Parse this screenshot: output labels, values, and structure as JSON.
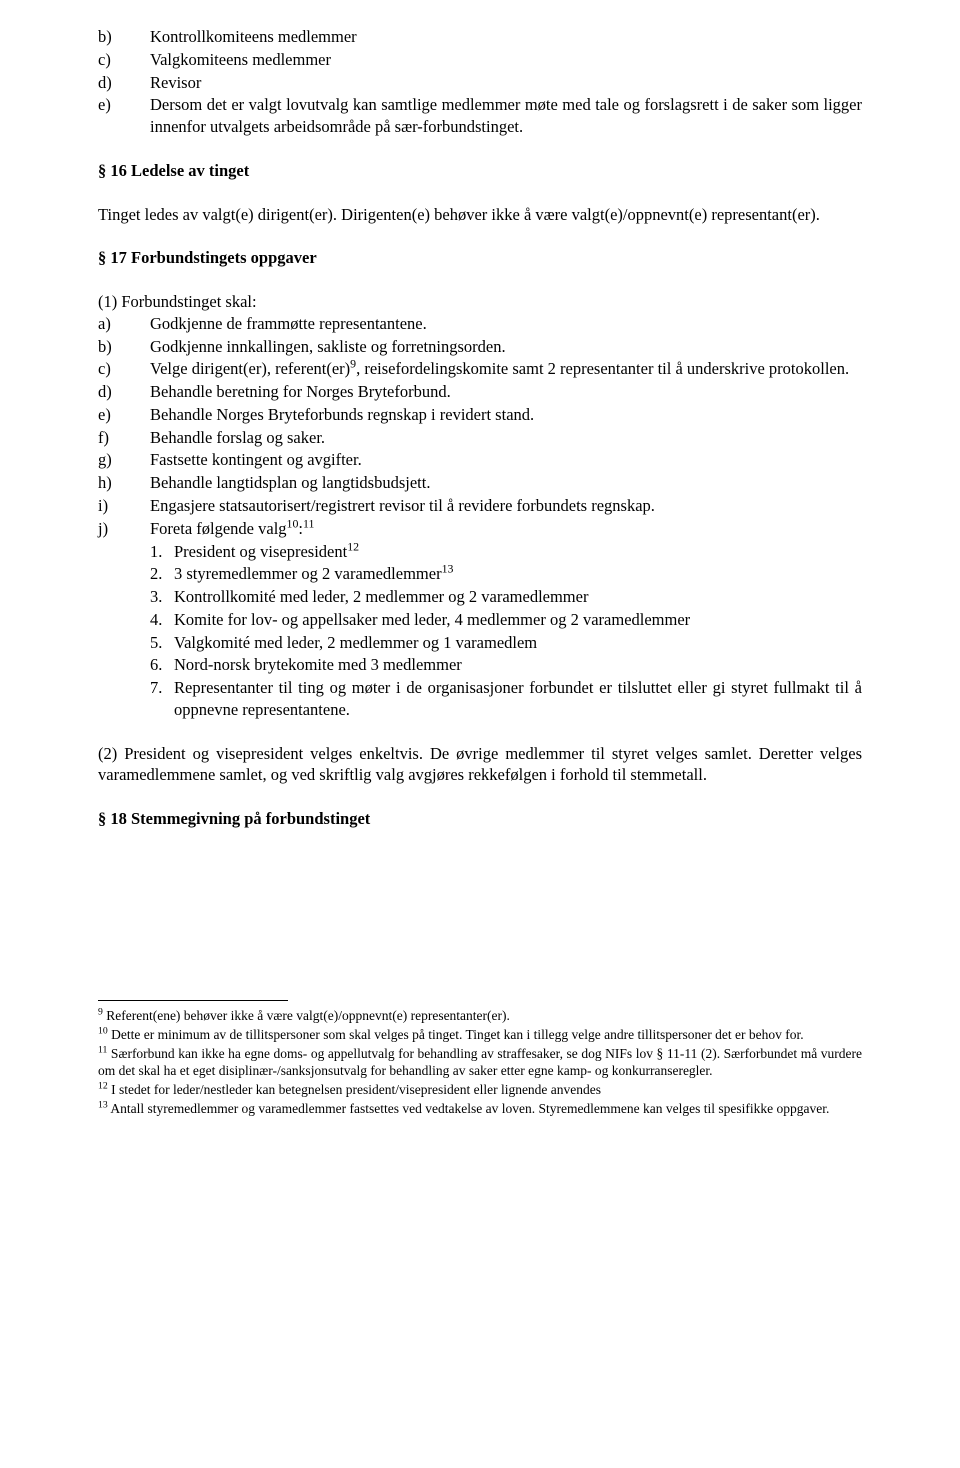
{
  "colors": {
    "background": "#ffffff",
    "text": "#000000",
    "rule": "#000000"
  },
  "typography": {
    "body_font": "Times New Roman",
    "body_size_pt": 12,
    "footnote_size_pt": 10,
    "heading_weight": "bold"
  },
  "top_list": [
    {
      "letter": "b)",
      "text": "Kontrollkomiteens medlemmer"
    },
    {
      "letter": "c)",
      "text": "Valgkomiteens medlemmer"
    },
    {
      "letter": "d)",
      "text": "Revisor"
    },
    {
      "letter": "e)",
      "text": "Dersom det er valgt lovutvalg kan samtlige medlemmer møte med tale og forslagsrett i de saker som ligger innenfor utvalgets arbeidsområde på sær-forbundstinget."
    }
  ],
  "section16": {
    "heading": "§ 16 Ledelse av tinget",
    "para": "Tinget ledes av valgt(e) dirigent(er). Dirigenten(e) behøver ikke å være valgt(e)/oppnevnt(e) representant(er)."
  },
  "section17": {
    "heading": "§ 17 Forbundstingets oppgaver",
    "intro": "(1) Forbundstinget skal:",
    "items": [
      {
        "letter": "a)",
        "text": "Godkjenne de frammøtte representantene."
      },
      {
        "letter": "b)",
        "text": "Godkjenne innkallingen, sakliste og forretningsorden."
      },
      {
        "letter": "c)",
        "pre": "Velge dirigent(er), referent(er)",
        "sup": "9",
        "post": ", reisefordelingskomite samt 2 representanter til å underskrive protokollen."
      },
      {
        "letter": "d)",
        "text": "Behandle beretning for Norges Bryteforbund."
      },
      {
        "letter": "e)",
        "text": "Behandle Norges Bryteforbunds regnskap i revidert stand."
      },
      {
        "letter": "f)",
        "text": "Behandle forslag og saker."
      },
      {
        "letter": "g)",
        "text": "Fastsette kontingent og avgifter."
      },
      {
        "letter": "h)",
        "text": "Behandle langtidsplan og langtidsbudsjett."
      },
      {
        "letter": "i)",
        "text": "Engasjere statsautorisert/registrert revisor til å revidere forbundets regnskap."
      },
      {
        "letter": "j)",
        "pre": "Foreta følgende valg",
        "sup": "10",
        "post_colon_sup": "11",
        "post": ":"
      }
    ],
    "j_sub": [
      {
        "num": "1.",
        "pre": "President og visepresident",
        "sup": "12",
        "post": ""
      },
      {
        "num": "2.",
        "pre": "3 styremedlemmer og 2 varamedlemmer",
        "sup": "13",
        "post": ""
      },
      {
        "num": "3.",
        "text": "Kontrollkomité med leder, 2 medlemmer og 2 varamedlemmer"
      },
      {
        "num": "4.",
        "text": "Komite for lov- og appellsaker med leder, 4 medlemmer og 2 varamedlemmer"
      },
      {
        "num": "5.",
        "text": "Valgkomité med leder, 2 medlemmer og 1 varamedlem"
      },
      {
        "num": "6.",
        "text": "Nord-norsk brytekomite med 3 medlemmer"
      },
      {
        "num": "7.",
        "text": "Representanter til ting og møter i de organisasjoner forbundet er tilsluttet eller gi styret fullmakt til å oppnevne representantene."
      }
    ],
    "para2": "(2) President og visepresident velges enkeltvis. De øvrige medlemmer til styret velges samlet. Deretter velges varamedlemmene samlet, og ved skriftlig valg avgjøres rekkefølgen i forhold til stemmetall."
  },
  "section18": {
    "heading": "§ 18 Stemmegivning på forbundstinget"
  },
  "footnotes": [
    {
      "sup": "9",
      "text": " Referent(ene) behøver ikke å være valgt(e)/oppnevnt(e) representanter(er)."
    },
    {
      "sup": "10",
      "text": " Dette er minimum av de tillitspersoner som skal velges på tinget. Tinget kan i tillegg velge andre tillitspersoner det er behov for."
    },
    {
      "sup": "11",
      "text": " Særforbund kan ikke ha egne doms- og appellutvalg for behandling av straffesaker, se dog NIFs lov § 11-11 (2). Særforbundet må vurdere om det skal ha et eget disiplinær-/sanksjonsutvalg for behandling av saker etter egne kamp- og konkurranseregler."
    },
    {
      "sup": "12",
      "text": " I stedet for leder/nestleder kan betegnelsen president/visepresident eller lignende anvendes"
    },
    {
      "sup": "13",
      "text": " Antall styremedlemmer og varamedlemmer fastsettes ved vedtakelse av loven. Styremedlemmene kan velges til spesifikke oppgaver."
    }
  ]
}
